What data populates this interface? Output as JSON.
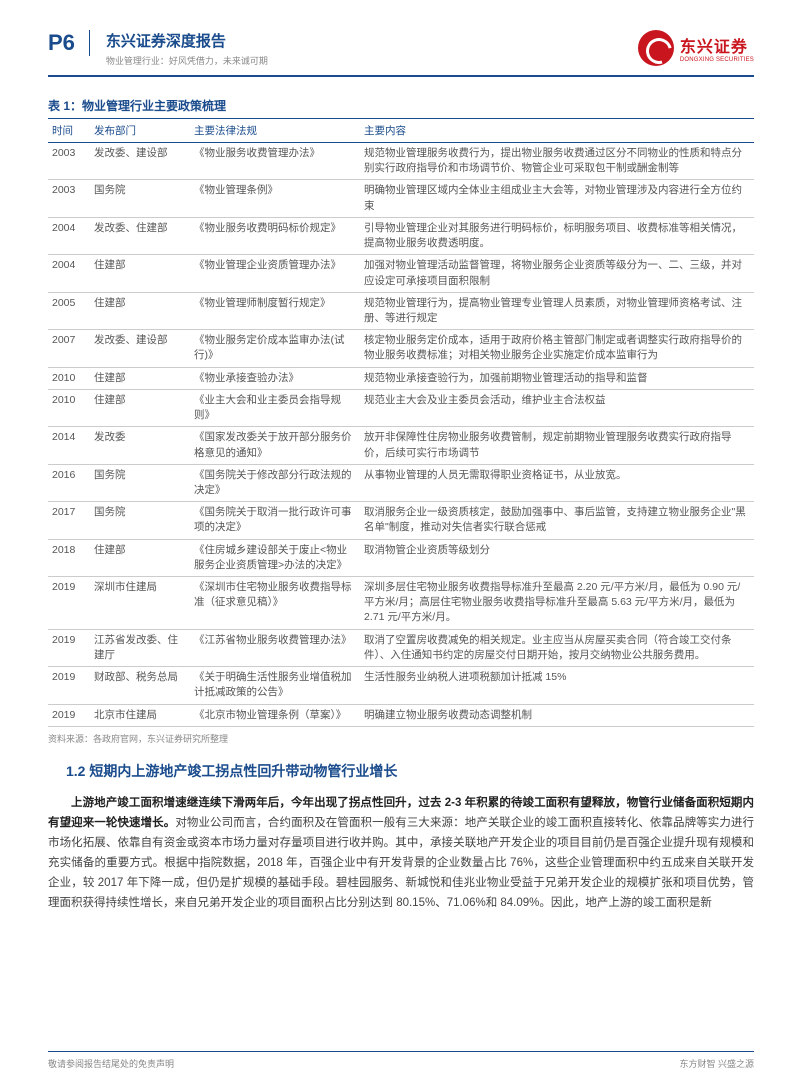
{
  "header": {
    "page_number": "P6",
    "title": "东兴证券深度报告",
    "subtitle": "物业管理行业：好风凭借力，未来诚可期",
    "logo_cn": "东兴证券",
    "logo_en": "DONGXING SECURITIES"
  },
  "table": {
    "title": "表 1：物业管理行业主要政策梳理",
    "columns": [
      "时间",
      "发布部门",
      "主要法律法规",
      "主要内容"
    ],
    "rows": [
      [
        "2003",
        "发改委、建设部",
        "《物业服务收费管理办法》",
        "规范物业管理服务收费行为，提出物业服务收费通过区分不同物业的性质和特点分别实行政府指导价和市场调节价、物管企业可采取包干制或酬金制等"
      ],
      [
        "2003",
        "国务院",
        "《物业管理条例》",
        "明确物业管理区域内全体业主组成业主大会等，对物业管理涉及内容进行全方位约束"
      ],
      [
        "2004",
        "发改委、住建部",
        "《物业服务收费明码标价规定》",
        "引导物业管理企业对其服务进行明码标价，标明服务项目、收费标准等相关情况，提高物业服务收费透明度。"
      ],
      [
        "2004",
        "住建部",
        "《物业管理企业资质管理办法》",
        "加强对物业管理活动监督管理，将物业服务企业资质等级分为一、二、三级，并对应设定可承接项目面积限制"
      ],
      [
        "2005",
        "住建部",
        "《物业管理师制度暂行规定》",
        "规范物业管理行为，提高物业管理专业管理人员素质，对物业管理师资格考试、注册、等进行规定"
      ],
      [
        "2007",
        "发改委、建设部",
        "《物业服务定价成本监审办法(试行)》",
        "核定物业服务定价成本，适用于政府价格主管部门制定或者调整实行政府指导价的物业服务收费标准；对相关物业服务企业实施定价成本监审行为"
      ],
      [
        "2010",
        "住建部",
        "《物业承接查验办法》",
        "规范物业承接查验行为，加强前期物业管理活动的指导和监督"
      ],
      [
        "2010",
        "住建部",
        "《业主大会和业主委员会指导规则》",
        "规范业主大会及业主委员会活动，维护业主合法权益"
      ],
      [
        "2014",
        "发改委",
        "《国家发改委关于放开部分服务价格意见的通知》",
        "放开非保障性住房物业服务收费管制，规定前期物业管理服务收费实行政府指导价，后续可实行市场调节"
      ],
      [
        "2016",
        "国务院",
        "《国务院关于修改部分行政法规的决定》",
        "从事物业管理的人员无需取得职业资格证书，从业放宽。"
      ],
      [
        "2017",
        "国务院",
        "《国务院关于取消一批行政许可事项的决定》",
        "取消服务企业一级资质核定，鼓励加强事中、事后监管，支持建立物业服务企业\"黑名单\"制度，推动对失信者实行联合惩戒"
      ],
      [
        "2018",
        "住建部",
        "《住房城乡建设部关于废止<物业服务企业资质管理>办法的决定》",
        "取消物管企业资质等级划分"
      ],
      [
        "2019",
        "深圳市住建局",
        "《深圳市住宅物业服务收费指导标准（征求意见稿）》",
        "深圳多层住宅物业服务收费指导标准升至最高 2.20 元/平方米/月，最低为 0.90 元/平方米/月；高层住宅物业服务收费指导标准升至最高 5.63 元/平方米/月，最低为 2.71 元/平方米/月。"
      ],
      [
        "2019",
        "江苏省发改委、住建厅",
        "《江苏省物业服务收费管理办法》",
        "取消了空置房收费减免的相关规定。业主应当从房屋买卖合同（符合竣工交付条件）、入住通知书约定的房屋交付日期开始，按月交纳物业公共服务费用。"
      ],
      [
        "2019",
        "财政部、税务总局",
        "《关于明确生活性服务业增值税加计抵减政策的公告》",
        "生活性服务业纳税人进项税额加计抵减 15%"
      ],
      [
        "2019",
        "北京市住建局",
        "《北京市物业管理条例（草案）》",
        "明确建立物业服务收费动态调整机制"
      ]
    ],
    "source": "资料来源：各政府官网，东兴证券研究所整理"
  },
  "section": {
    "heading": "1.2 短期内上游地产竣工拐点性回升带动物管行业增长",
    "bold_lead": "上游地产竣工面积增速继连续下滑两年后，今年出现了拐点性回升，过去 2-3 年积累的待竣工面积有望释放，物管行业储备面积短期内有望迎来一轮快速增长。",
    "rest": "对物业公司而言，合约面积及在管面积一般有三大来源：地产关联企业的竣工面积直接转化、依靠品牌等实力进行市场化拓展、依靠自有资金或资本市场力量对存量项目进行收并购。其中，承接关联地产开发企业的项目目前仍是百强企业提升现有规模和充实储备的重要方式。根据中指院数据，2018 年，百强企业中有开发背景的企业数量占比 76%，这些企业管理面积中约五成来自关联开发企业，较 2017 年下降一成，但仍是扩规模的基础手段。碧桂园服务、新城悦和佳兆业物业受益于兄弟开发企业的规模扩张和项目优势，管理面积获得持续性增长，来自兄弟开发企业的项目面积占比分别达到 80.15%、71.06%和 84.09%。因此，地产上游的竣工面积是新"
  },
  "footer": {
    "left": "敬请参阅报告结尾处的免责声明",
    "right": "东方财智 兴盛之源"
  },
  "colors": {
    "brand_blue": "#1a4b8c",
    "brand_red": "#c9151e",
    "text_gray": "#555555",
    "light_gray": "#888888",
    "border_gray": "#cccccc"
  }
}
